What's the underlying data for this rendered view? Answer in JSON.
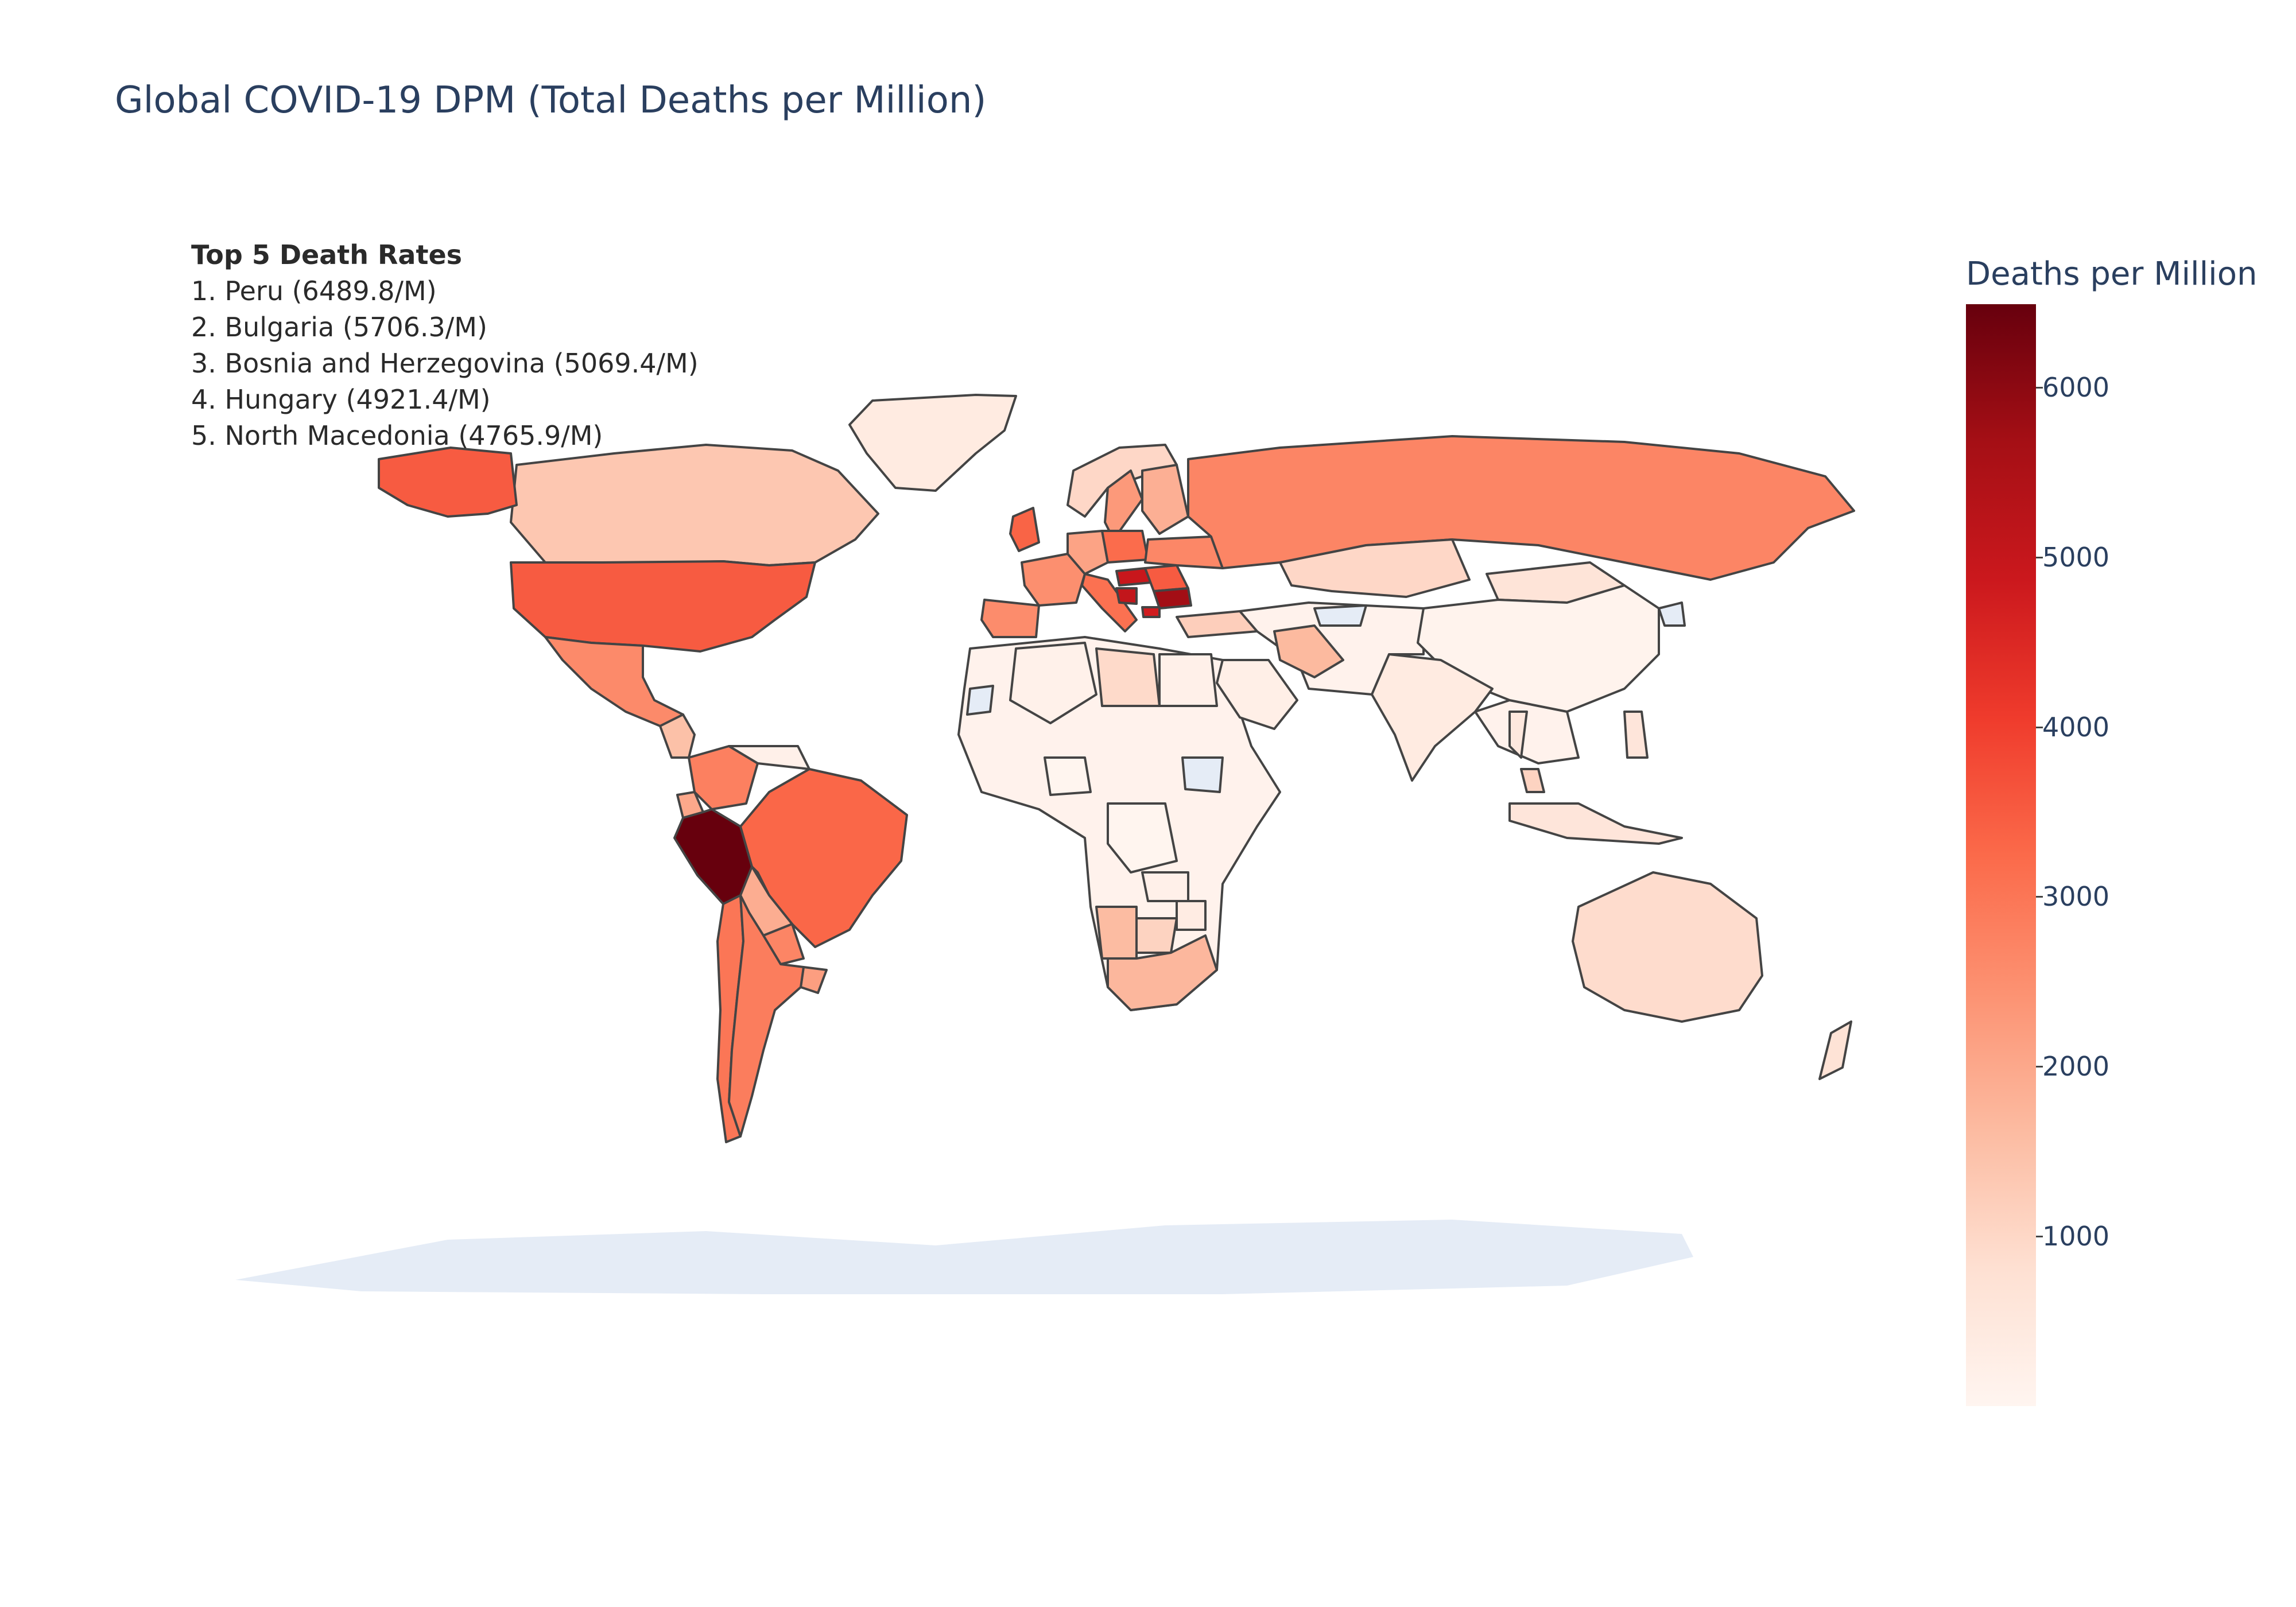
{
  "title": "Global COVID-19 DPM (Total Deaths per Million)",
  "annotation": {
    "heading": "Top 5 Death Rates",
    "lines": [
      "1. Peru (6489.8/M)",
      "2. Bulgaria (5706.3/M)",
      "3. Bosnia and Herzegovina (5069.4/M)",
      "4. Hungary (4921.4/M)",
      "5. North Macedonia (4765.9/M)"
    ]
  },
  "colorbar": {
    "title": "Deaths per Million",
    "min": 0,
    "max": 6489.8,
    "ticks": [
      1000,
      2000,
      3000,
      4000,
      5000,
      6000
    ],
    "tick_labels": [
      "1000",
      "2000",
      "3000",
      "4000",
      "5000",
      "6000"
    ],
    "colorscale": [
      "#fff5f0",
      "#fee0d2",
      "#fcbba1",
      "#fc9272",
      "#fb6a4a",
      "#ef3b2c",
      "#cb181d",
      "#a50f15",
      "#67000d"
    ]
  },
  "colors": {
    "no_data": "#e5ecf6",
    "border": "#444444",
    "title_text": "#2a3f5f"
  },
  "chart_data": {
    "type": "choropleth",
    "projection": "natural earth",
    "z_label": "Deaths per Million",
    "regions": [
      {
        "name": "Peru",
        "value": 6489.8
      },
      {
        "name": "Bulgaria",
        "value": 5706.3
      },
      {
        "name": "Bosnia and Herzegovina",
        "value": 5069.4
      },
      {
        "name": "Hungary",
        "value": 4921.4
      },
      {
        "name": "North Macedonia",
        "value": 4765.9
      },
      {
        "name": "United States",
        "value": 3500
      },
      {
        "name": "Brazil",
        "value": 3300
      },
      {
        "name": "Colombia",
        "value": 2800
      },
      {
        "name": "Argentina",
        "value": 2850
      },
      {
        "name": "Chile",
        "value": 3000
      },
      {
        "name": "Mexico",
        "value": 2600
      },
      {
        "name": "Russia",
        "value": 2700
      },
      {
        "name": "United Kingdom",
        "value": 3350
      },
      {
        "name": "Spain",
        "value": 2550
      },
      {
        "name": "Italy",
        "value": 3100
      },
      {
        "name": "France",
        "value": 2500
      },
      {
        "name": "Poland",
        "value": 3200
      },
      {
        "name": "Germany",
        "value": 2100
      },
      {
        "name": "Romania",
        "value": 3500
      },
      {
        "name": "Ukraine",
        "value": 2650
      },
      {
        "name": "Bolivia",
        "value": 1900
      },
      {
        "name": "Paraguay",
        "value": 2700
      },
      {
        "name": "Uruguay",
        "value": 2200
      },
      {
        "name": "Ecuador",
        "value": 2000
      },
      {
        "name": "South Africa",
        "value": 1700
      },
      {
        "name": "Namibia",
        "value": 1600
      },
      {
        "name": "Iran",
        "value": 1650
      },
      {
        "name": "Canada",
        "value": 1350
      },
      {
        "name": "Sweden",
        "value": 2300
      },
      {
        "name": "Finland",
        "value": 1850
      },
      {
        "name": "Norway",
        "value": 1000
      },
      {
        "name": "Turkey",
        "value": 1200
      },
      {
        "name": "Australia",
        "value": 900
      },
      {
        "name": "Kazakhstan",
        "value": 1000
      },
      {
        "name": "Greenland",
        "value": 400
      },
      {
        "name": "India",
        "value": 400
      },
      {
        "name": "Libya",
        "value": 950
      },
      {
        "name": "Egypt",
        "value": 200
      },
      {
        "name": "Saudi Arabia",
        "value": 250
      },
      {
        "name": "Mongolia",
        "value": 650
      },
      {
        "name": "Indonesia",
        "value": 600
      },
      {
        "name": "Malaysia",
        "value": 1100
      },
      {
        "name": "Philippines",
        "value": 600
      },
      {
        "name": "Thailand",
        "value": 500
      },
      {
        "name": "Botswana",
        "value": 1100
      },
      {
        "name": "Zambia",
        "value": 200
      },
      {
        "name": "Zimbabwe",
        "value": 350
      },
      {
        "name": "New Zealand",
        "value": 700
      },
      {
        "name": "China",
        "value": 80
      },
      {
        "name": "Nigeria",
        "value": 15
      },
      {
        "name": "Democratic Republic of the Congo",
        "value": 15
      },
      {
        "name": "Algeria",
        "value": 150
      },
      {
        "name": "Venezuela",
        "value": 200
      }
    ],
    "no_data_regions": [
      "Antarctica",
      "Turkmenistan",
      "South Sudan",
      "Western Sahara",
      "North Korea"
    ]
  }
}
